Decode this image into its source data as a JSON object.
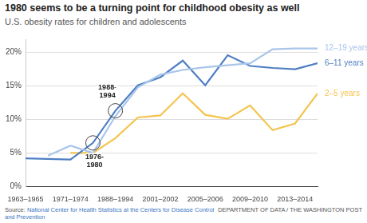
{
  "chart_data": {
    "type": "line",
    "title": "1980 seems to be a turning point for childhood obesity as well",
    "subtitle": "U.S. obesity rates for children and adolescents",
    "categories": [
      "1963–1965",
      null,
      "1971–1974",
      null,
      "1988–1994",
      null,
      "2001–2002",
      null,
      "2005–2006",
      null,
      "2009–2010",
      null,
      "2013–2014",
      null
    ],
    "series": [
      {
        "name": "12–19 years",
        "color": "#a9c5ea",
        "values": [
          null,
          4.6,
          6.1,
          5.0,
          10.5,
          14.8,
          16.7,
          17.4,
          17.8,
          18.1,
          18.4,
          20.5,
          20.6,
          20.6
        ]
      },
      {
        "name": "6–11 years",
        "color": "#4e7fc4",
        "values": [
          4.2,
          null,
          4.0,
          6.5,
          11.3,
          15.1,
          16.3,
          18.8,
          15.1,
          19.6,
          18.0,
          17.7,
          17.5,
          18.4
        ]
      },
      {
        "name": "2–5 years",
        "color": "#f4c44e",
        "values": [
          null,
          null,
          5.0,
          5.0,
          7.2,
          10.3,
          10.6,
          13.9,
          10.7,
          10.1,
          12.1,
          8.4,
          9.4,
          13.9
        ]
      }
    ],
    "ylim": [
      0,
      22
    ],
    "yticks": [
      {
        "value": 0,
        "label": "0%"
      },
      {
        "value": 5,
        "label": "5%"
      },
      {
        "value": 10,
        "label": "10%"
      },
      {
        "value": 15,
        "label": "15%"
      },
      {
        "value": 20,
        "label": "20%"
      }
    ],
    "grid": true,
    "annotations": [
      {
        "text": "1988-1994",
        "series": "6–11 years",
        "index": 4
      },
      {
        "text": "1976-1980",
        "series": "6–11 years",
        "index": 3
      }
    ],
    "source_label": "Source:",
    "source": "National Center for Health Statistics at the Centers for Disease Control and Prevention",
    "credit": "DEPARTMENT OF DATA / THE WASHINGTON POST"
  }
}
